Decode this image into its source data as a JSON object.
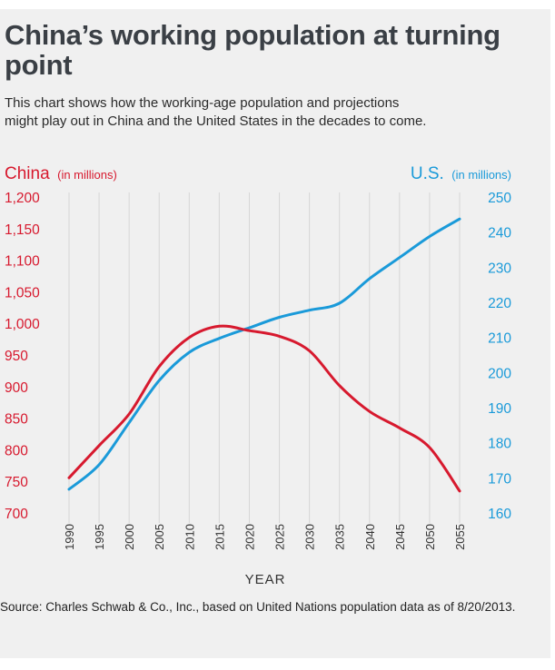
{
  "title": "China’s working population at turning point",
  "subtitle": "This chart shows how the working-age population and projections might play out in China and the United States in the decades to come.",
  "source": "Source: Charles Schwab & Co., Inc., based on United Nations population data as of 8/20/2013.",
  "colors": {
    "china": "#d7192e",
    "us": "#1a9ad9",
    "background": "#f0f0f0",
    "gridline": "#d6d6d6"
  },
  "chart_data": {
    "type": "line",
    "title": "China’s working population at turning point",
    "xlabel": "YEAR",
    "x": [
      1990,
      1995,
      2000,
      2005,
      2010,
      2015,
      2020,
      2025,
      2030,
      2035,
      2040,
      2045,
      2050,
      2055
    ],
    "x_tick_labels": [
      "1990",
      "1995",
      "2000",
      "2005",
      "2010",
      "2015",
      "2020",
      "2025",
      "2030",
      "2035",
      "2040",
      "2045",
      "2050",
      "2055"
    ],
    "left_axis": {
      "label": "China",
      "unit": "(in millions)",
      "ylim": [
        700,
        1200
      ],
      "ticks": [
        700,
        750,
        800,
        850,
        900,
        950,
        1000,
        1050,
        1100,
        1150,
        1200
      ],
      "tick_labels": [
        "700",
        "750",
        "800",
        "850",
        "900",
        "950",
        "1,000",
        "1,050",
        "1,100",
        "1,150",
        "1,200"
      ]
    },
    "right_axis": {
      "label": "U.S.",
      "unit": "(in millions)",
      "ylim": [
        160,
        250
      ],
      "ticks": [
        160,
        170,
        180,
        190,
        200,
        210,
        220,
        230,
        240,
        250
      ],
      "tick_labels": [
        "160",
        "170",
        "180",
        "190",
        "200",
        "210",
        "220",
        "230",
        "240",
        "250"
      ]
    },
    "series": [
      {
        "name": "China",
        "axis": "left",
        "color": "#d7192e",
        "values": [
          757,
          808,
          858,
          933,
          979,
          997,
          990,
          981,
          958,
          903,
          862,
          836,
          805,
          736
        ]
      },
      {
        "name": "U.S.",
        "axis": "right",
        "color": "#1a9ad9",
        "values": [
          167,
          174,
          186,
          198,
          206,
          210,
          213,
          216,
          218,
          220,
          227,
          233,
          239,
          244
        ]
      }
    ]
  }
}
